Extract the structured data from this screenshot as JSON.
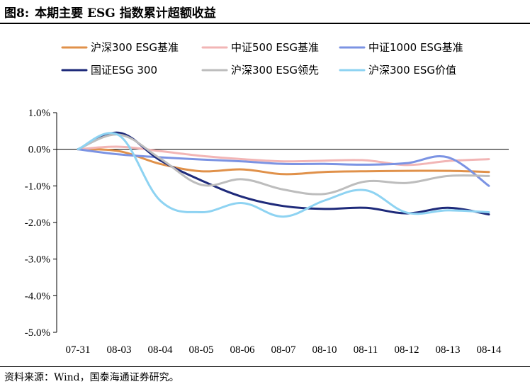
{
  "figure": {
    "number": "图8:",
    "title": "本期主要 ESG 指数累计超额收益",
    "source": "资料来源：Wind，国泰海通证券研究。"
  },
  "chart_data": {
    "type": "line",
    "categories": [
      "07-31",
      "08-03",
      "08-04",
      "08-05",
      "08-06",
      "08-07",
      "08-10",
      "08-11",
      "08-12",
      "08-13",
      "08-14"
    ],
    "ylim": [
      -5.0,
      1.0
    ],
    "yticks": [
      "1.0%",
      "0.0%",
      "-1.0%",
      "-2.0%",
      "-3.0%",
      "-4.0%",
      "-5.0%"
    ],
    "ytick_values": [
      1.0,
      0.0,
      -1.0,
      -2.0,
      -3.0,
      -4.0,
      -5.0
    ],
    "legend_position": "top",
    "series": [
      {
        "name": "沪深300 ESG基准",
        "color": "#E0914A",
        "values": [
          0.0,
          -0.05,
          -0.4,
          -0.6,
          -0.55,
          -0.68,
          -0.62,
          -0.6,
          -0.59,
          -0.59,
          -0.62
        ]
      },
      {
        "name": "中证500 ESG基准",
        "color": "#F2B5B5",
        "values": [
          0.0,
          0.07,
          -0.05,
          -0.18,
          -0.27,
          -0.33,
          -0.31,
          -0.3,
          -0.43,
          -0.32,
          -0.27
        ]
      },
      {
        "name": "中证1000 ESG基准",
        "color": "#7B93E3",
        "values": [
          0.0,
          -0.14,
          -0.22,
          -0.28,
          -0.33,
          -0.4,
          -0.4,
          -0.42,
          -0.38,
          -0.22,
          -1.0
        ]
      },
      {
        "name": "国证ESG 300",
        "color": "#1E2A7A",
        "values": [
          0.0,
          0.45,
          -0.3,
          -0.85,
          -1.3,
          -1.55,
          -1.63,
          -1.6,
          -1.75,
          -1.6,
          -1.78
        ]
      },
      {
        "name": "沪深300 ESG领先",
        "color": "#BDBDBD",
        "values": [
          0.0,
          0.4,
          -0.25,
          -0.97,
          -0.82,
          -1.1,
          -1.22,
          -0.88,
          -0.92,
          -0.73,
          -0.73
        ]
      },
      {
        "name": "沪深300 ESG价值",
        "color": "#8ED3F2",
        "values": [
          0.0,
          0.38,
          -1.4,
          -1.72,
          -1.47,
          -1.84,
          -1.4,
          -1.12,
          -1.73,
          -1.67,
          -1.72
        ]
      }
    ]
  }
}
